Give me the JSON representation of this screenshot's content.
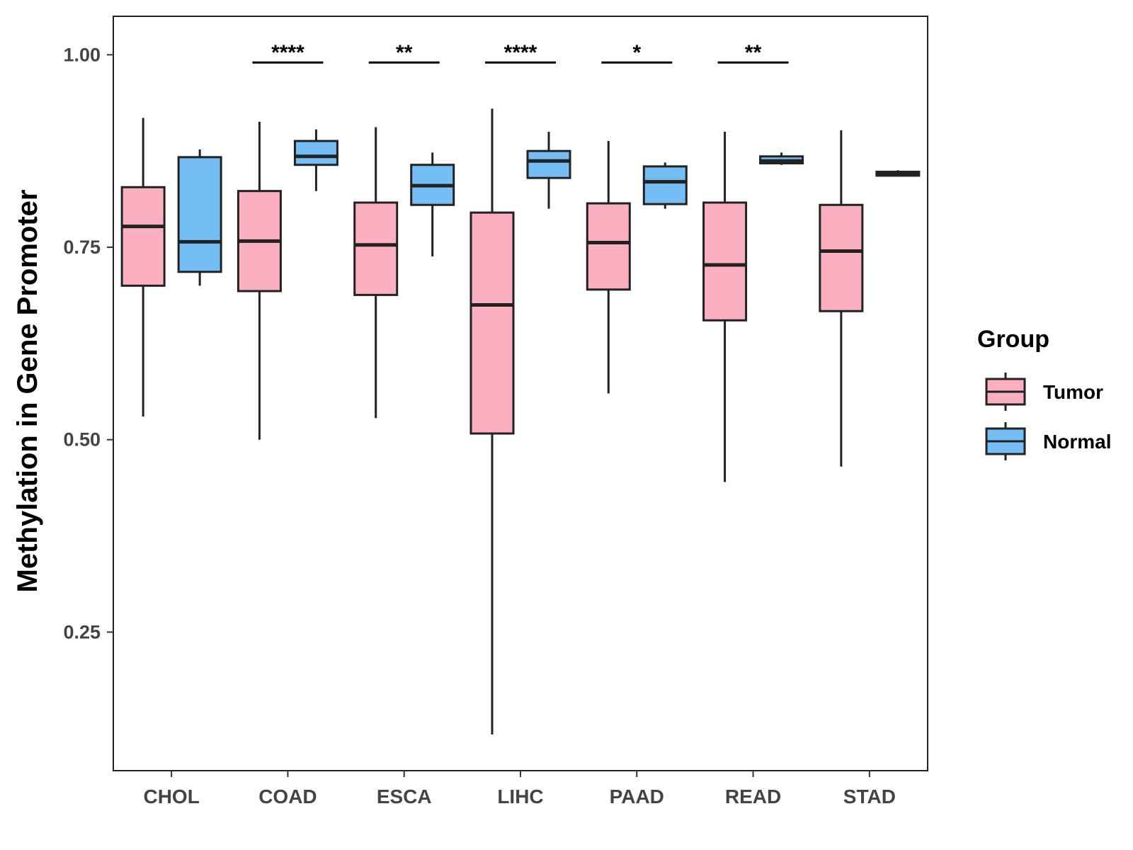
{
  "chart_data": {
    "type": "boxplot",
    "title": "",
    "xlabel": "",
    "ylabel": "Methylation in Gene Promoter",
    "ylim": [
      0.07,
      1.05
    ],
    "yticks": [
      0.25,
      0.5,
      0.75,
      1.0
    ],
    "ytick_labels": [
      "0.25",
      "0.50",
      "0.75",
      "1.00"
    ],
    "categories": [
      "CHOL",
      "COAD",
      "ESCA",
      "LIHC",
      "PAAD",
      "READ",
      "STAD"
    ],
    "legend": {
      "title": "Group",
      "position": "right",
      "entries": [
        {
          "name": "Tumor",
          "color": "#FBB0C2"
        },
        {
          "name": "Normal",
          "color": "#74BEF5"
        }
      ]
    },
    "series": [
      {
        "name": "Tumor",
        "color": "#FBB0C2",
        "boxes": [
          {
            "category": "CHOL",
            "min": 0.53,
            "q1": 0.7,
            "median": 0.777,
            "q3": 0.828,
            "max": 0.918
          },
          {
            "category": "COAD",
            "min": 0.5,
            "q1": 0.693,
            "median": 0.758,
            "q3": 0.823,
            "max": 0.913
          },
          {
            "category": "ESCA",
            "min": 0.528,
            "q1": 0.688,
            "median": 0.753,
            "q3": 0.808,
            "max": 0.906
          },
          {
            "category": "LIHC",
            "min": 0.117,
            "q1": 0.508,
            "median": 0.675,
            "q3": 0.795,
            "max": 0.93
          },
          {
            "category": "PAAD",
            "min": 0.56,
            "q1": 0.695,
            "median": 0.756,
            "q3": 0.807,
            "max": 0.888
          },
          {
            "category": "READ",
            "min": 0.445,
            "q1": 0.655,
            "median": 0.727,
            "q3": 0.808,
            "max": 0.9
          },
          {
            "category": "STAD",
            "min": 0.465,
            "q1": 0.667,
            "median": 0.745,
            "q3": 0.805,
            "max": 0.902
          }
        ]
      },
      {
        "name": "Normal",
        "color": "#74BEF5",
        "boxes": [
          {
            "category": "CHOL",
            "min": 0.7,
            "q1": 0.718,
            "median": 0.757,
            "q3": 0.867,
            "max": 0.877
          },
          {
            "category": "COAD",
            "min": 0.823,
            "q1": 0.857,
            "median": 0.868,
            "q3": 0.888,
            "max": 0.903
          },
          {
            "category": "ESCA",
            "min": 0.738,
            "q1": 0.805,
            "median": 0.83,
            "q3": 0.857,
            "max": 0.873
          },
          {
            "category": "LIHC",
            "min": 0.8,
            "q1": 0.84,
            "median": 0.862,
            "q3": 0.875,
            "max": 0.9
          },
          {
            "category": "PAAD",
            "min": 0.8,
            "q1": 0.806,
            "median": 0.835,
            "q3": 0.855,
            "max": 0.86
          },
          {
            "category": "READ",
            "min": 0.857,
            "q1": 0.859,
            "median": 0.862,
            "q3": 0.868,
            "max": 0.873
          },
          {
            "category": "STAD",
            "min": 0.842,
            "q1": 0.843,
            "median": 0.845,
            "q3": 0.848,
            "max": 0.85
          }
        ]
      }
    ],
    "annotations": [
      {
        "category": "COAD",
        "text": "****",
        "y": 0.99
      },
      {
        "category": "ESCA",
        "text": "**",
        "y": 0.99
      },
      {
        "category": "LIHC",
        "text": "****",
        "y": 0.99
      },
      {
        "category": "PAAD",
        "text": "*",
        "y": 0.99
      },
      {
        "category": "READ",
        "text": "**",
        "y": 0.99
      }
    ]
  }
}
